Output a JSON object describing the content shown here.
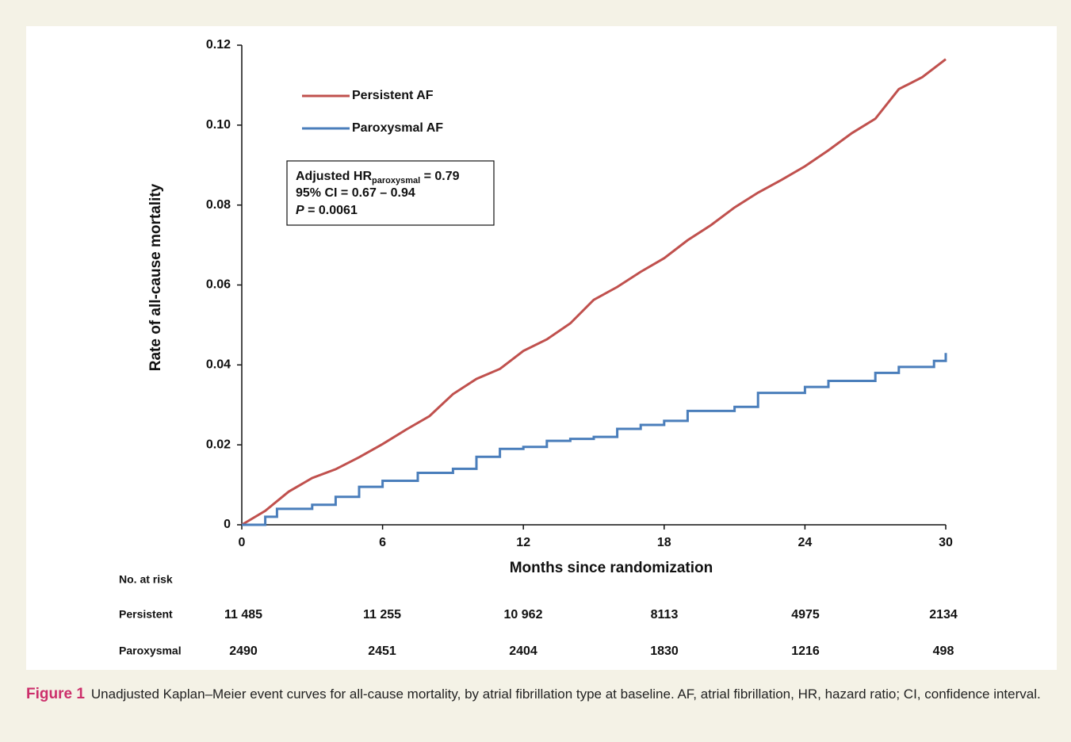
{
  "chart_data": {
    "type": "line",
    "ylabel": "Rate of all-cause mortality",
    "xlabel": "Months since randomization",
    "xlim": [
      0,
      30
    ],
    "xticks": [
      0,
      6,
      12,
      18,
      24,
      30
    ],
    "ylim": [
      0,
      0.12
    ],
    "yticks": [
      0,
      0.02,
      0.04,
      0.06,
      0.08,
      {
        "value": 0.1,
        "label": "0.10"
      },
      0.12
    ],
    "legend": "upper left",
    "series": [
      {
        "name": "Persistent AF",
        "color": "#c0504d",
        "step": false,
        "x": [
          0,
          1,
          2,
          3,
          4,
          5,
          6,
          7,
          8,
          9,
          10,
          11,
          12,
          13,
          14,
          15,
          16,
          17,
          18,
          19,
          20,
          21,
          22,
          23,
          24,
          25,
          26,
          27,
          28,
          29,
          30
        ],
        "values": [
          0,
          0.0035,
          0.0083,
          0.0117,
          0.0139,
          0.0169,
          0.0202,
          0.0238,
          0.0272,
          0.0327,
          0.0365,
          0.039,
          0.0435,
          0.0464,
          0.0504,
          0.0563,
          0.0595,
          0.0633,
          0.0667,
          0.0712,
          0.075,
          0.0794,
          0.0831,
          0.0863,
          0.0897,
          0.0937,
          0.098,
          0.1016,
          0.109,
          0.112,
          0.1165
        ]
      },
      {
        "name": "Paroxysmal AF",
        "color": "#4a7ebb",
        "step": true,
        "x": [
          0,
          1,
          1.5,
          3,
          4,
          5,
          6,
          7.5,
          9,
          10,
          11,
          12,
          13,
          14,
          15,
          16,
          17,
          18,
          19,
          21,
          22,
          24,
          25,
          27,
          28,
          29.5,
          30
        ],
        "values": [
          0,
          0.002,
          0.004,
          0.005,
          0.007,
          0.0095,
          0.011,
          0.013,
          0.014,
          0.017,
          0.019,
          0.0195,
          0.021,
          0.0215,
          0.022,
          0.024,
          0.025,
          0.026,
          0.0285,
          0.0295,
          0.033,
          0.0345,
          0.036,
          0.038,
          0.0395,
          0.041,
          0.043
        ]
      }
    ],
    "annotation": {
      "hr_label": "Adjusted HR",
      "hr_sub": "paroxysmal",
      "hr_value": " = 0.79",
      "ci": "95% CI = 0.67 – 0.94",
      "p_label": "P",
      "p_value": " = 0.0061"
    },
    "risk_table": {
      "title": "No. at risk",
      "rows": [
        {
          "label": "Persistent",
          "values": [
            "11 485",
            "11 255",
            "10 962",
            "8113",
            "4975",
            "2134"
          ]
        },
        {
          "label": "Paroxysmal",
          "values": [
            "2490",
            "2451",
            "2404",
            "1830",
            "1216",
            "498"
          ]
        }
      ]
    }
  },
  "caption": {
    "label": "Figure 1",
    "text": "Unadjusted Kaplan–Meier event curves for all-cause mortality, by atrial fibrillation type at baseline. AF, atrial fibrillation, HR, hazard ratio; CI, confidence interval."
  }
}
